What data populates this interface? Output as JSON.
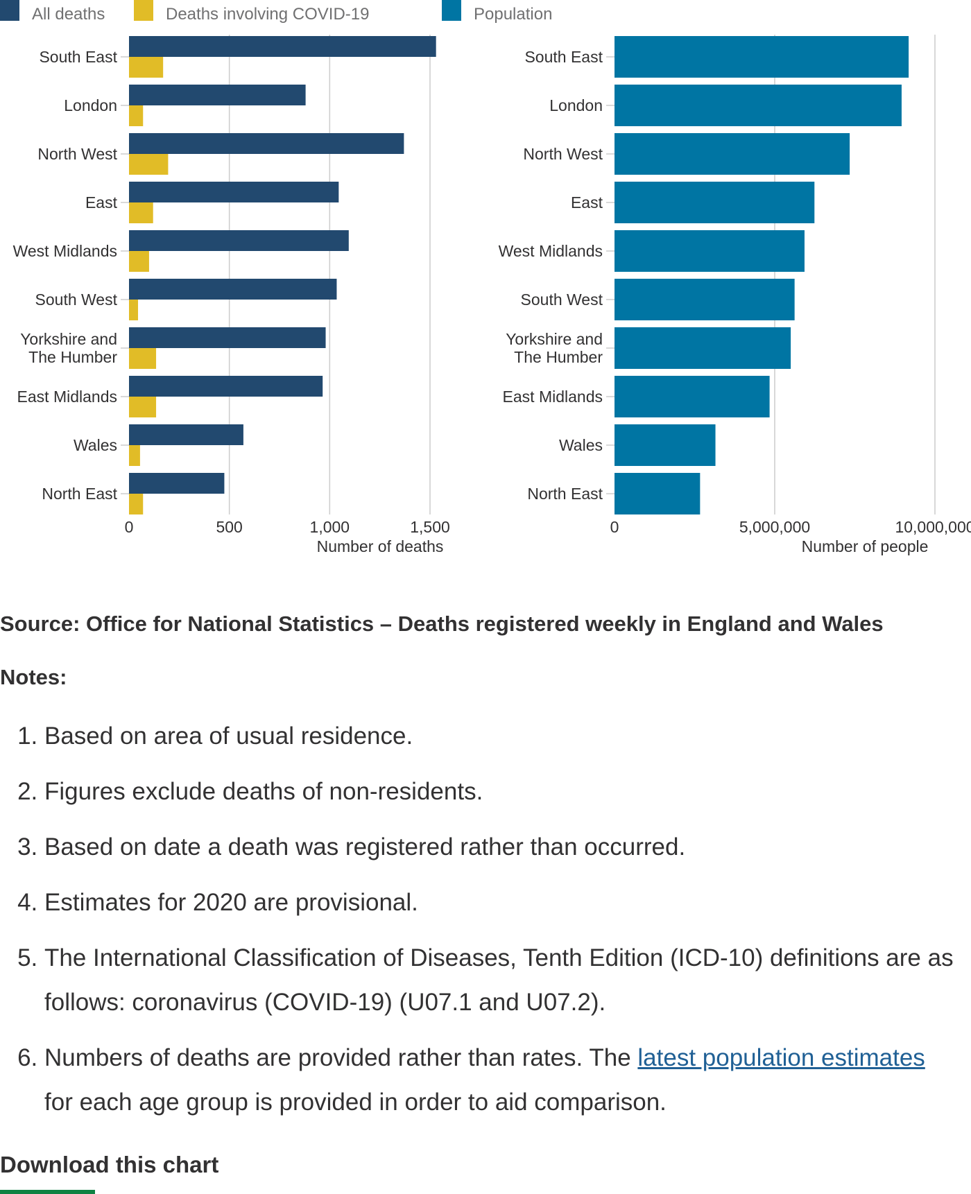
{
  "legend": {
    "all_deaths": "All deaths",
    "covid_deaths": "Deaths involving COVID-19",
    "population": "Population"
  },
  "colors": {
    "all_deaths": "#22496f",
    "covid_deaths": "#e1bc27",
    "population": "#0075a3",
    "grid": "#cccccc",
    "text": "#323132",
    "link": "#206095",
    "download_underline": "#0f8243"
  },
  "chart_data": [
    {
      "type": "bar",
      "orientation": "horizontal",
      "categories": [
        [
          "South East"
        ],
        [
          "London"
        ],
        [
          "North West"
        ],
        [
          "East"
        ],
        [
          "West Midlands"
        ],
        [
          "South West"
        ],
        [
          "Yorkshire and",
          "The Humber"
        ],
        [
          "East Midlands"
        ],
        [
          "Wales"
        ],
        [
          "North East"
        ]
      ],
      "series": [
        {
          "name": "All deaths",
          "values": [
            1530,
            880,
            1370,
            1045,
            1095,
            1035,
            980,
            965,
            570,
            475
          ]
        },
        {
          "name": "Deaths involving COVID-19",
          "values": [
            170,
            70,
            195,
            120,
            100,
            45,
            135,
            135,
            55,
            70
          ]
        }
      ],
      "xlim": [
        0,
        1500
      ],
      "ticks": [
        0,
        500,
        1000,
        1500
      ],
      "tick_labels": [
        "0",
        "500",
        "1,000",
        "1,500"
      ],
      "xlabel": "Number of deaths",
      "grid": true
    },
    {
      "type": "bar",
      "orientation": "horizontal",
      "categories": [
        [
          "South East"
        ],
        [
          "London"
        ],
        [
          "North West"
        ],
        [
          "East"
        ],
        [
          "West Midlands"
        ],
        [
          "South West"
        ],
        [
          "Yorkshire and",
          "The Humber"
        ],
        [
          "East Midlands"
        ],
        [
          "Wales"
        ],
        [
          "North East"
        ]
      ],
      "series": [
        {
          "name": "Population",
          "values": [
            9180000,
            8960000,
            7340000,
            6240000,
            5930000,
            5620000,
            5500000,
            4840000,
            3150000,
            2670000
          ]
        }
      ],
      "xlim": [
        0,
        10000000
      ],
      "ticks": [
        0,
        5000000,
        10000000
      ],
      "tick_labels": [
        "0",
        "5,000,000",
        "10,000,000"
      ],
      "xlabel": "Number of people",
      "grid": true
    }
  ],
  "source": "Source: Office for National Statistics – Deaths registered weekly in England and Wales",
  "notes": {
    "heading": "Notes:",
    "items": [
      "Based on area of usual residence.",
      "Figures exclude deaths of non-residents.",
      "Based on date a death was registered rather than occurred.",
      "Estimates for 2020 are provisional.",
      "The International Classification of Diseases, Tenth Edition (ICD-10) definitions are as follows: coronavirus (COVID-19) (U07.1 and U07.2)."
    ],
    "item6": {
      "before": "Numbers of deaths are provided rather than rates. The ",
      "link": "latest population estimates",
      "after": " for each age group is provided in order to aid comparison."
    }
  },
  "download": "Download this chart"
}
